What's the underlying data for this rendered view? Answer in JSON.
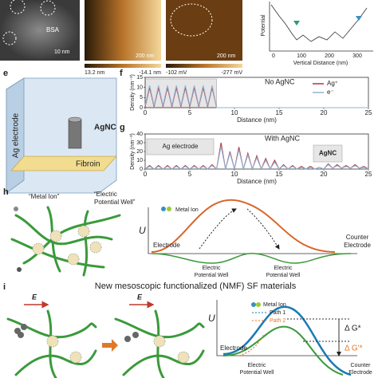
{
  "top": {
    "bsa": "BSA",
    "scale_1": "10 nm",
    "scale_2": "200 nm",
    "range_2": [
      "13.2 nm",
      "-14.1 nm"
    ],
    "scale_3": "200 nm",
    "range_3": [
      "-102 mV",
      "-277 mV"
    ],
    "profile": {
      "y_label": "Potential",
      "x_label": "Vertical Distance (nm)",
      "x_ticks": [
        "0",
        "100",
        "200",
        "300"
      ]
    }
  },
  "panel_e": {
    "label": "e",
    "electrode": "Ag electrode",
    "agnc": "AgNC",
    "fibroin": "Fibroin"
  },
  "chart_data": [
    {
      "type": "line",
      "panel_label": "f",
      "annotation": "No AgNC",
      "x": [
        0,
        0.5,
        1,
        1.5,
        2,
        2.5,
        3,
        3.5,
        4,
        4.5,
        5,
        5.5,
        6,
        6.5,
        7,
        7.5,
        8,
        25
      ],
      "series": [
        {
          "name": "Ag⁺",
          "color": "#b83232",
          "values": [
            0.5,
            10,
            0.5,
            10,
            0.5,
            10,
            0.5,
            10,
            0.5,
            10,
            0.5,
            10,
            0.5,
            10,
            0.5,
            10,
            0,
            0
          ]
        },
        {
          "name": "e⁻",
          "color": "#8fb3d9",
          "values": [
            1,
            11,
            1,
            11,
            1,
            11,
            1,
            11,
            1,
            11,
            1,
            11,
            1,
            11,
            1,
            11,
            0,
            0
          ]
        }
      ],
      "xlim": [
        0,
        25
      ],
      "ylim": [
        0,
        15
      ],
      "xticks": [
        0,
        5,
        10,
        15,
        20,
        25
      ],
      "yticks": [
        0,
        5,
        10,
        15
      ],
      "x_label": "Distance (nm)",
      "y_label": "Density (nm⁻³)",
      "legend": "upper right"
    },
    {
      "type": "line",
      "panel_label": "g",
      "annotation": "With AgNC",
      "regions": [
        "Ag electrode",
        "AgNC"
      ],
      "x": [
        0,
        0.5,
        1,
        1.5,
        2,
        2.5,
        3,
        3.5,
        4,
        4.5,
        5,
        5.5,
        6,
        6.5,
        7,
        7.5,
        8,
        8.5,
        9,
        9.5,
        10,
        10.5,
        11,
        11.5,
        12,
        12.5,
        13,
        13.5,
        14,
        14.5,
        15,
        15.5,
        16,
        16.5,
        17,
        17.5,
        18,
        18.5,
        19,
        19.5,
        20,
        20.5,
        21,
        21.5,
        22,
        22.5,
        23,
        23.5,
        24,
        24.5,
        25
      ],
      "series": [
        {
          "color": "#b83232",
          "values": [
            0,
            4,
            0,
            4,
            0,
            4,
            0,
            4,
            0,
            4,
            0,
            4,
            0,
            4,
            0,
            5,
            0,
            30,
            0,
            20,
            0,
            25,
            0,
            18,
            0,
            15,
            0,
            12,
            0,
            10,
            0,
            5,
            0,
            4,
            0,
            3,
            0,
            3,
            0,
            2,
            0,
            6,
            1,
            5,
            1,
            4,
            1,
            5,
            1,
            3,
            0
          ]
        },
        {
          "color": "#8fb3d9",
          "values": [
            0,
            3,
            0,
            3,
            0,
            3,
            0,
            3,
            0,
            3,
            0,
            3,
            0,
            3,
            0,
            4,
            0,
            26,
            0,
            18,
            0,
            22,
            0,
            16,
            0,
            13,
            0,
            10,
            0,
            8,
            0,
            4,
            0,
            3,
            0,
            2,
            0,
            2,
            0,
            2,
            0,
            5,
            1,
            4,
            1,
            3,
            1,
            4,
            1,
            2,
            0
          ]
        }
      ],
      "xlim": [
        0,
        25
      ],
      "ylim": [
        0,
        40
      ],
      "xticks": [
        0,
        5,
        10,
        15,
        20,
        25
      ],
      "yticks": [
        0,
        10,
        20,
        30,
        40
      ],
      "x_label": "Distance (nm)",
      "y_label": "Density (nm⁻³)"
    }
  ],
  "panel_h": {
    "label": "h",
    "metal_ion": "“Metal Ion”",
    "potential_well": [
      "“Electric",
      "Potential Well”"
    ],
    "energy": {
      "u": "U",
      "metal_ion": "Metal Ion",
      "electrode": "Electrode",
      "counter_electrode": [
        "Counter",
        "Electrode"
      ],
      "well_left": [
        "Electric",
        "Potential Well"
      ],
      "well_right": [
        "Electric",
        "Potential Well"
      ]
    }
  },
  "panel_i": {
    "label": "i",
    "title": "New mesoscopic functionalized (NMF) SF materials",
    "field_1": "E",
    "field_2": "E",
    "energy": {
      "u": "U",
      "legend": [
        "Metal Ion",
        "Path 1",
        "Path 2"
      ],
      "electrode": "Electrode",
      "well": [
        "Electric",
        "Potential Well"
      ],
      "dg": "Δ G*",
      "dg2": "Δ G'*",
      "counter_electrode": [
        "Counter",
        "Electrode"
      ]
    }
  }
}
